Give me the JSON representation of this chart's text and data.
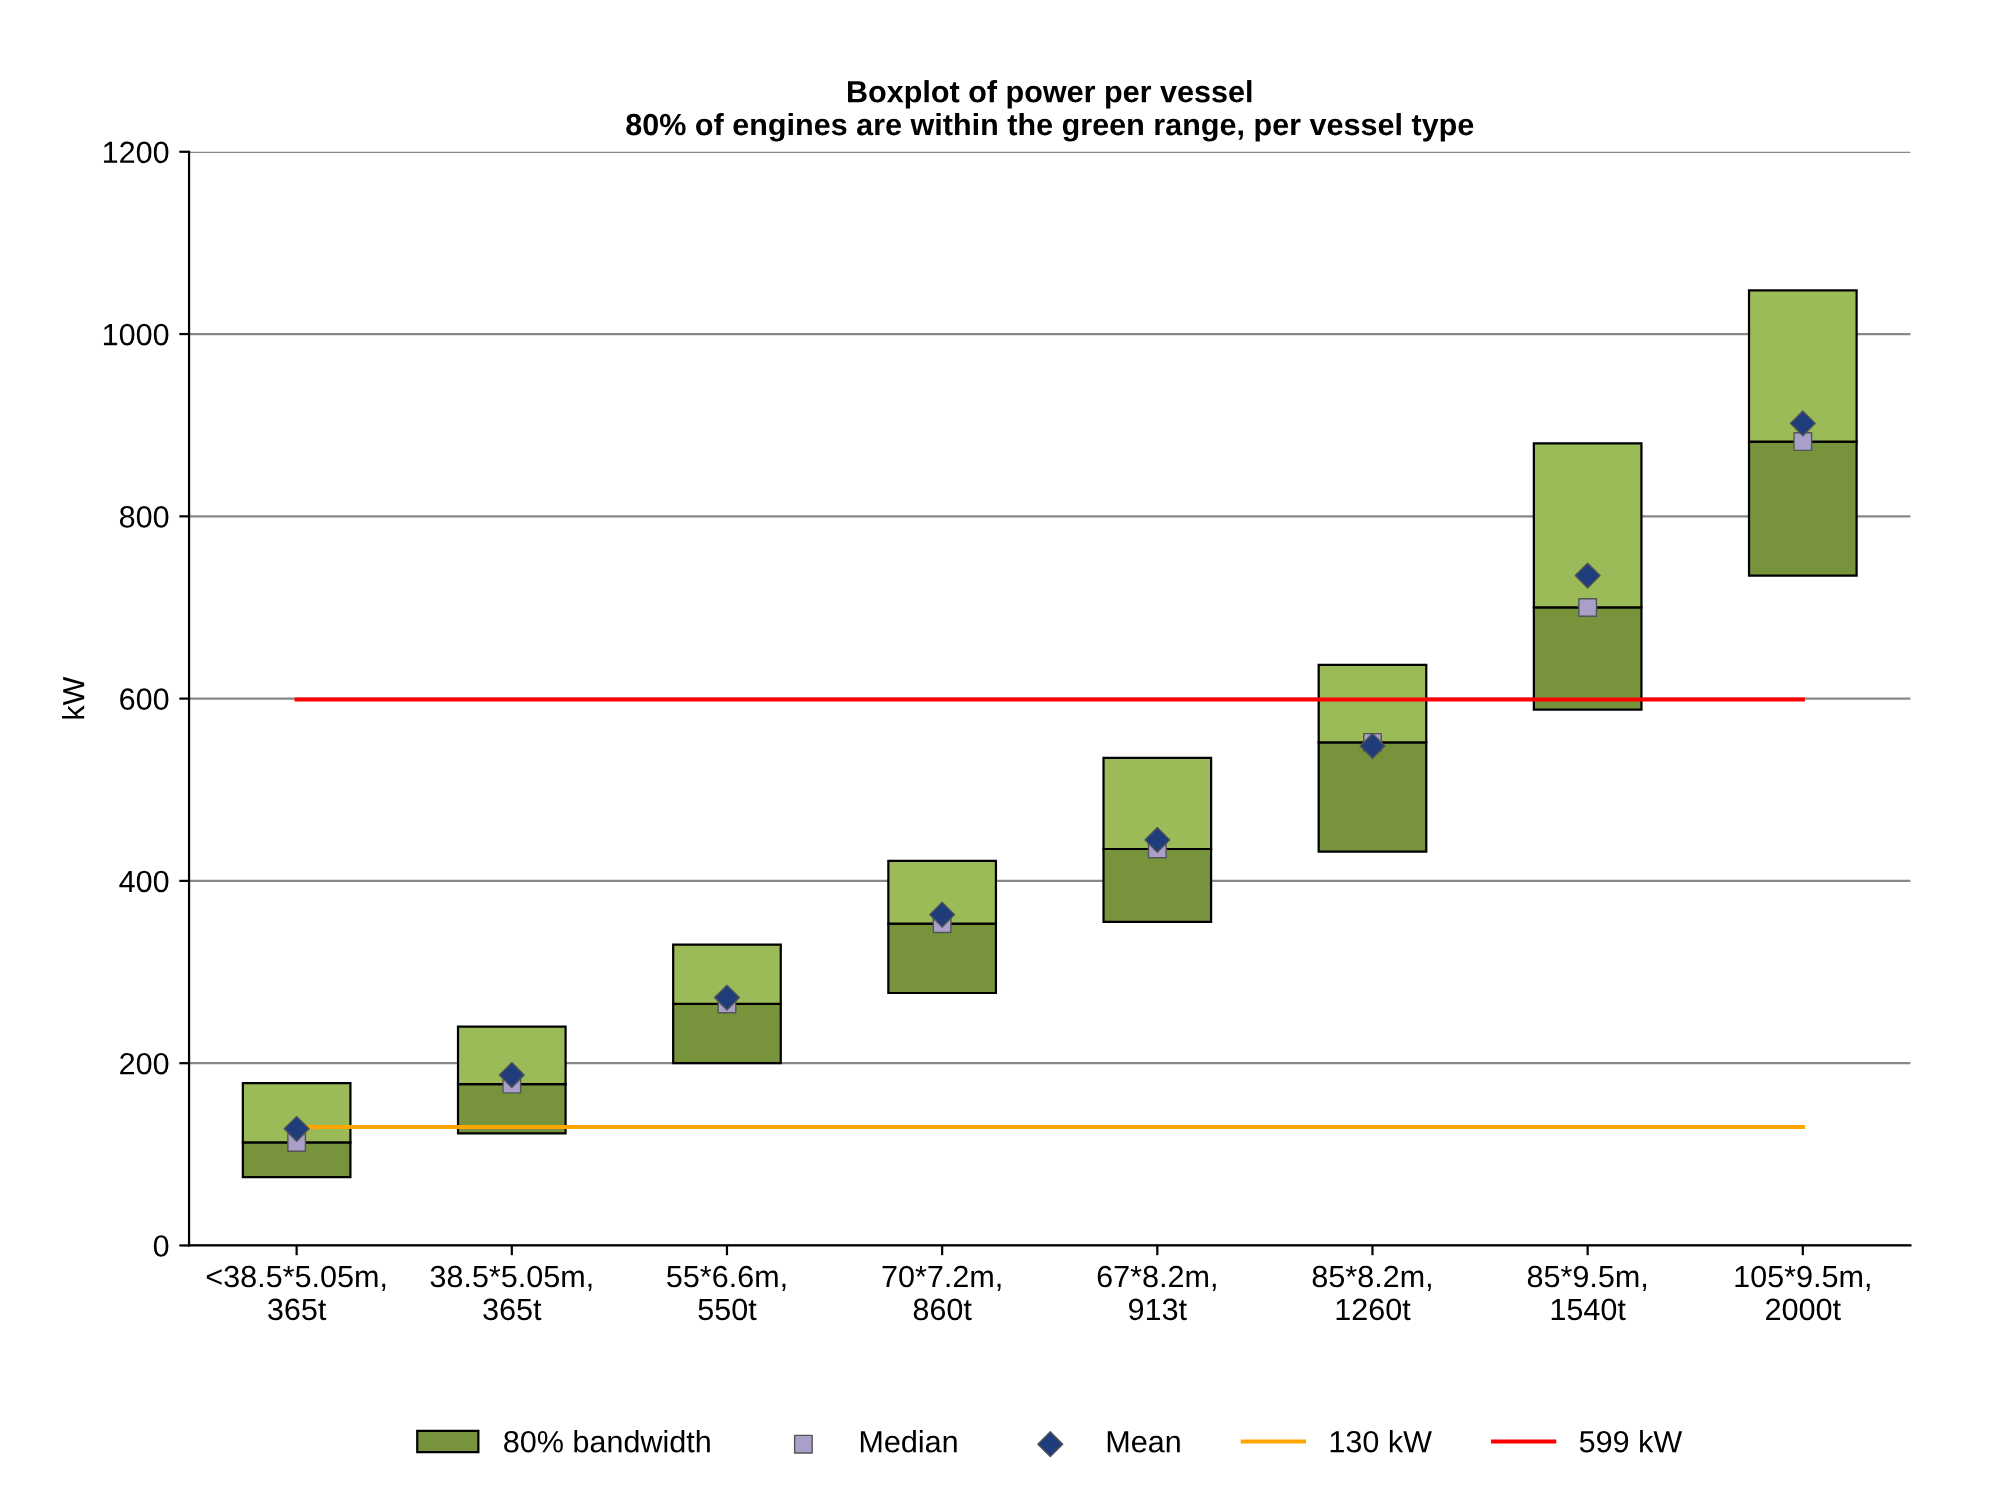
{
  "chart_data": {
    "type": "bar",
    "title": "Boxplot of power per vessel",
    "subtitle": "80% of engines are within the green range, per vessel type",
    "ylabel": "kW",
    "categories": [
      "<38.5*5.05m,\n365t",
      "38.5*5.05m,\n365t",
      "55*6.6m,\n550t",
      "70*7.2m,\n860t",
      "67*8.2m,\n913t",
      "85*8.2m,\n1260t",
      "85*9.5m,\n1540t",
      "105*9.5m,\n2000t"
    ],
    "series": [
      {
        "name": "80% bandwidth",
        "color": "#77933c",
        "base": [
          75,
          123,
          200,
          277,
          355,
          432,
          588,
          735
        ],
        "values": [
          38,
          54,
          65,
          76,
          80,
          120,
          112,
          147
        ]
      },
      {
        "color": "#9bbb59",
        "base": [
          113,
          177,
          265,
          353,
          435,
          552,
          700,
          882
        ],
        "values": [
          65,
          63,
          65,
          69,
          100,
          85,
          180,
          166
        ]
      },
      {
        "name": "Median",
        "type": "scatter",
        "marker": "square",
        "color": "#a99fc9",
        "x": [
          "<38.5*5.05m,\n365t",
          "38.5*5.05m,\n365t",
          "55*6.6m,\n550t",
          "70*7.2m,\n860t",
          "67*8.2m,\n913t",
          "85*8.2m,\n1260t",
          "85*9.5m,\n1540t",
          "105*9.5m,\n2000t"
        ],
        "values": [
          113,
          177,
          265,
          353,
          435,
          552,
          700,
          882
        ]
      },
      {
        "name": "Mean",
        "type": "scatter",
        "marker": "diamond",
        "color": "#1f3d7a",
        "x": [
          "<38.5*5.05m,\n365t",
          "38.5*5.05m,\n365t",
          "55*6.6m,\n550t",
          "70*7.2m,\n860t",
          "67*8.2m,\n913t",
          "85*8.2m,\n1260t",
          "85*9.5m,\n1540t",
          "105*9.5m,\n2000t"
        ],
        "values": [
          128,
          187,
          272,
          363,
          445,
          548,
          735,
          902
        ]
      },
      {
        "name": "130 kW",
        "type": "line",
        "color": "#ffa500",
        "values": [
          130,
          130,
          130,
          130,
          130,
          130,
          130,
          130
        ]
      },
      {
        "name": "599 kW",
        "type": "line",
        "color": "#ff0000",
        "values": [
          599,
          599,
          599,
          599,
          599,
          599,
          599,
          599
        ]
      }
    ],
    "ylim": [
      0,
      1200
    ],
    "yticks": [
      0,
      200,
      400,
      600,
      800,
      1000,
      1200
    ],
    "grid": "y",
    "legend": "bottom"
  }
}
